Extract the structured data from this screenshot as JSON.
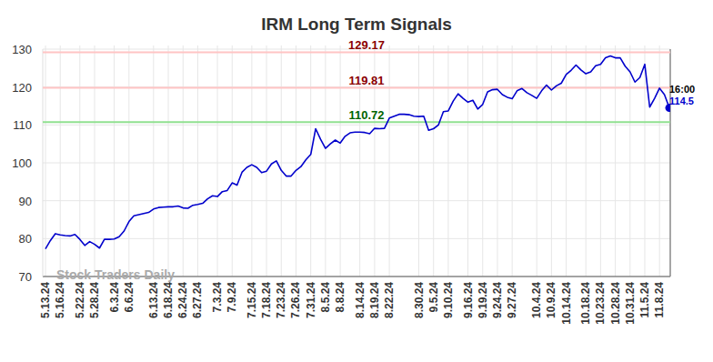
{
  "chart_data": {
    "type": "line",
    "title": "IRM Long Term Signals",
    "watermark": "Stock Traders Daily",
    "categories": [
      "5.13.24",
      null,
      null,
      "5.16.24",
      null,
      null,
      null,
      "5.22.24",
      null,
      null,
      "5.28.24",
      null,
      null,
      null,
      "6.3.24",
      null,
      null,
      "6.6.24",
      null,
      null,
      null,
      null,
      "6.13.24",
      null,
      null,
      "6.18.24",
      null,
      null,
      "6.24.24",
      null,
      null,
      "6.27.24",
      null,
      null,
      null,
      "7.3.24",
      null,
      null,
      "7.9.24",
      null,
      null,
      null,
      "7.15.24",
      null,
      null,
      "7.18.24",
      null,
      null,
      "7.23.24",
      null,
      null,
      "7.26.24",
      null,
      null,
      "7.31.24",
      null,
      null,
      "8.5.24",
      null,
      null,
      "8.8.24",
      null,
      null,
      null,
      "8.14.24",
      null,
      null,
      "8.19.24",
      null,
      null,
      "8.22.24",
      null,
      null,
      null,
      null,
      null,
      "8.30.24",
      null,
      null,
      "9.5.24",
      null,
      null,
      "9.10.24",
      null,
      null,
      null,
      "9.16.24",
      null,
      null,
      "9.19.24",
      null,
      null,
      "9.24.24",
      null,
      null,
      "9.27.24",
      null,
      null,
      null,
      null,
      "10.4.24",
      null,
      null,
      "10.9.24",
      null,
      null,
      "10.14.24",
      null,
      null,
      null,
      "10.18.24",
      null,
      null,
      "10.23.24",
      null,
      null,
      "10.28.24",
      null,
      null,
      "10.31.24",
      null,
      null,
      "11.5.24",
      null,
      null,
      "11.8.24",
      null,
      null
    ],
    "values": [
      77.3,
      79.5,
      81.3,
      81.0,
      80.8,
      80.7,
      81.1,
      79.8,
      78.2,
      79.2,
      78.5,
      77.5,
      79.8,
      79.8,
      79.9,
      80.5,
      82.0,
      84.5,
      86.0,
      86.3,
      86.6,
      86.9,
      87.8,
      88.2,
      88.3,
      88.4,
      88.4,
      88.6,
      88.1,
      88.0,
      88.8,
      89.0,
      89.3,
      90.5,
      91.3,
      91.1,
      92.4,
      92.7,
      94.7,
      94.1,
      97.5,
      98.8,
      99.5,
      98.8,
      97.4,
      97.8,
      99.7,
      100.5,
      98.0,
      96.5,
      96.5,
      98.0,
      99.0,
      100.8,
      102.2,
      109.0,
      106.2,
      103.8,
      105.0,
      106.0,
      105.2,
      107.0,
      107.9,
      108.1,
      108.1,
      108.0,
      107.7,
      109.1,
      109.0,
      109.1,
      111.8,
      112.3,
      112.8,
      112.8,
      112.7,
      112.3,
      112.2,
      112.3,
      108.6,
      109.0,
      110.0,
      113.5,
      113.7,
      116.3,
      118.2,
      117.0,
      116.0,
      116.5,
      114.2,
      115.4,
      118.7,
      119.3,
      119.4,
      118.0,
      117.3,
      116.9,
      119.0,
      119.6,
      118.5,
      117.8,
      117.0,
      119.0,
      120.5,
      119.2,
      120.3,
      121.0,
      123.3,
      124.4,
      125.8,
      124.5,
      123.5,
      124.0,
      125.6,
      126.0,
      127.7,
      128.2,
      127.7,
      127.7,
      125.5,
      124.0,
      121.3,
      122.5,
      126.0,
      114.7,
      117.0,
      119.7,
      118.0,
      114.5
    ],
    "color": "#0000cc",
    "ylim": [
      70,
      130
    ],
    "yticks": [
      70,
      80,
      90,
      100,
      110,
      120,
      130
    ],
    "grid": true,
    "lines": [
      {
        "value": 129.17,
        "label": "129.17",
        "color": "#ffc4c4",
        "label_color": "#8b0000"
      },
      {
        "value": 119.81,
        "label": "119.81",
        "color": "#ffc4c4",
        "label_color": "#8b0000"
      },
      {
        "value": 110.72,
        "label": "110.72",
        "color": "#90e090",
        "label_color": "#006400"
      }
    ],
    "annotations": [
      {
        "text": "16:00",
        "color": "#000000"
      },
      {
        "text": "114.5",
        "color": "#0000cc"
      }
    ]
  }
}
